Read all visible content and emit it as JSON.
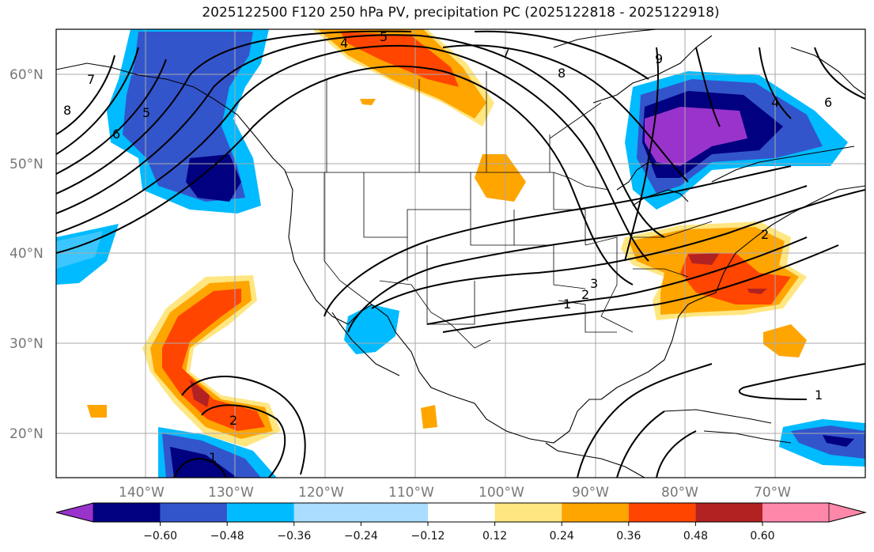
{
  "title": "2025122500 F120 250 hPa PV, precipitation PC (2025122818 - 2025122918)",
  "lat_labels": [
    "60°N",
    "50°N",
    "40°N",
    "30°N",
    "20°N"
  ],
  "lon_labels": [
    "140°W",
    "130°W",
    "120°W",
    "110°W",
    "100°W",
    "90°W",
    "80°W",
    "70°W"
  ],
  "colorbar": {
    "ticks": [
      "−0.60",
      "−0.48",
      "−0.36",
      "−0.24",
      "−0.12",
      "0.12",
      "0.24",
      "0.36",
      "0.48",
      "0.60"
    ],
    "colors": [
      "#9933cc",
      "#000080",
      "#3355cc",
      "#00bbff",
      "#aaddff",
      "#ffffff",
      "#ffe680",
      "#ffa500",
      "#ff4500",
      "#b22222",
      "#ff88aa"
    ]
  },
  "pv_contour_labels": [
    "1",
    "2",
    "3",
    "4",
    "5",
    "6",
    "7",
    "8",
    "9",
    "1",
    "2",
    "4",
    "5",
    "6",
    "7",
    "8",
    "1",
    "2"
  ]
}
